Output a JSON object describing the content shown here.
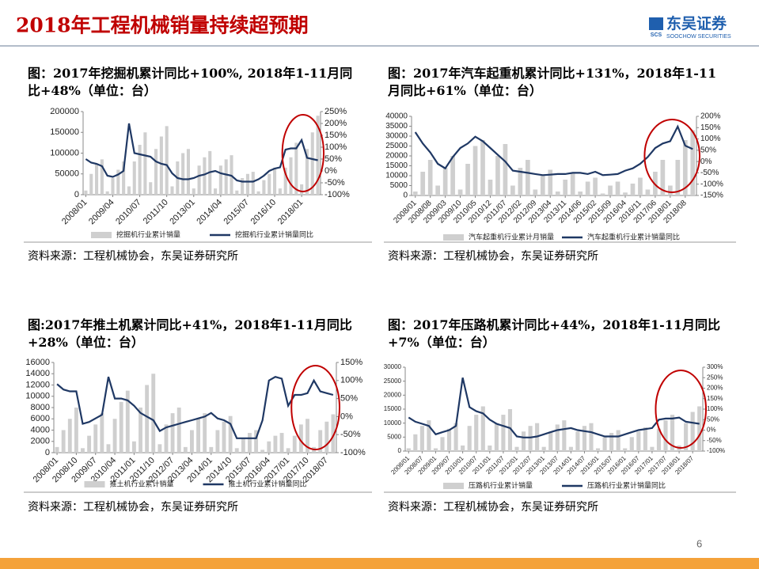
{
  "header": {
    "title": "2018年工程机械销量持续超预期",
    "logo": "东吴证券",
    "logo_mark": "SCS",
    "logo_sub": "SOOCHOW SECURITIES"
  },
  "page_number": "6",
  "chart_data": [
    {
      "type": "bar_line",
      "title": "图：2017年挖掘机累计同比+100%, 2018年1-11月同比+48%（单位：台）",
      "source": "资料来源：工程机械协会，东吴证券研究所",
      "categories": [
        "2008/01",
        null,
        null,
        null,
        null,
        "2009/04",
        null,
        null,
        null,
        null,
        "2010/07",
        null,
        null,
        null,
        null,
        "2011/10",
        null,
        null,
        null,
        null,
        "2013/01",
        null,
        null,
        null,
        null,
        "2014/04",
        null,
        null,
        null,
        null,
        "2015/07",
        null,
        null,
        null,
        null,
        "2016/10",
        null,
        null,
        null,
        null,
        "2018/01",
        null,
        null,
        null
      ],
      "series": [
        {
          "name": "挖掘机行业累计销量",
          "type": "bar",
          "color": "#cfcfcf",
          "values": [
            10000,
            50000,
            75000,
            85000,
            8000,
            40000,
            60000,
            80000,
            20000,
            80000,
            120000,
            150000,
            30000,
            110000,
            140000,
            165000,
            20000,
            80000,
            100000,
            110000,
            15000,
            70000,
            90000,
            105000,
            15000,
            70000,
            85000,
            95000,
            10000,
            40000,
            50000,
            55000,
            8000,
            35000,
            50000,
            65000,
            15000,
            65000,
            90000,
            125000,
            25000,
            110000,
            150000,
            190000
          ]
        },
        {
          "name": "挖掘机行业累计销量同比",
          "type": "line",
          "axis": "y2",
          "color": "#1f3864",
          "values": [
            50,
            35,
            30,
            20,
            -20,
            -25,
            -15,
            0,
            200,
            75,
            70,
            65,
            60,
            40,
            30,
            25,
            -10,
            -30,
            -35,
            -35,
            -30,
            -20,
            -15,
            -5,
            0,
            -10,
            -15,
            -20,
            -40,
            -45,
            -45,
            -45,
            -35,
            -20,
            0,
            10,
            15,
            90,
            95,
            95,
            130,
            55,
            50,
            45
          ]
        }
      ],
      "ylim": [
        0,
        200000
      ],
      "yticks": [
        0,
        50000,
        100000,
        150000,
        200000
      ],
      "y2lim": [
        -100,
        250
      ],
      "y2ticks": [
        {
          "value": -100,
          "label": "-100%"
        },
        {
          "value": -50,
          "label": "-50%"
        },
        {
          "value": 0,
          "label": "0%"
        },
        {
          "value": 50,
          "label": "50%"
        },
        {
          "value": 100,
          "label": "100%"
        },
        {
          "value": 150,
          "label": "150%"
        },
        {
          "value": 200,
          "label": "200%"
        },
        {
          "value": 250,
          "label": "250%"
        }
      ]
    },
    {
      "type": "bar_line",
      "title": "图：2017年汽车起重机累计同比+131%，2018年1-11月同比+61%（单位：台）",
      "source": "资料来源：工程机械协会，东吴证券研究所",
      "categories": [
        "2008/01",
        null,
        "2008/08",
        null,
        "2009/03",
        null,
        "2009/10",
        null,
        "2010/05",
        null,
        "2010/12",
        null,
        "2011/07",
        null,
        "2012/02",
        null,
        "2012/09",
        null,
        "2013/04",
        null,
        "2013/11",
        null,
        "2014/06",
        null,
        "2015/02",
        null,
        "2015/09",
        null,
        "2016/04",
        null,
        "2016/11",
        null,
        "2017/06",
        null,
        "2018/01",
        null,
        "2018/08",
        null
      ],
      "series": [
        {
          "name": "汽车起重机行业累计月销量",
          "type": "bar",
          "color": "#cfcfcf",
          "values": [
            2000,
            12000,
            18000,
            5000,
            14000,
            20000,
            3000,
            16000,
            25000,
            28000,
            8000,
            20000,
            26000,
            5000,
            14000,
            18000,
            3000,
            10000,
            13000,
            2000,
            8000,
            11000,
            2000,
            7000,
            9000,
            1000,
            5000,
            7000,
            1500,
            6000,
            9000,
            3000,
            12000,
            18000,
            5000,
            18000,
            28000,
            33000
          ]
        },
        {
          "name": "汽车起重机行业累计销量同比",
          "type": "line",
          "axis": "y2",
          "color": "#1f3864",
          "values": [
            130,
            80,
            40,
            -10,
            -30,
            20,
            60,
            80,
            110,
            90,
            60,
            30,
            0,
            -40,
            -45,
            -50,
            -55,
            -60,
            -58,
            -55,
            -55,
            -50,
            -50,
            -55,
            -45,
            -60,
            -58,
            -55,
            -40,
            -30,
            -10,
            20,
            60,
            80,
            90,
            155,
            70,
            55
          ]
        }
      ],
      "ylim": [
        0,
        40000
      ],
      "yticks": [
        0,
        5000,
        10000,
        15000,
        20000,
        25000,
        30000,
        35000,
        40000
      ],
      "y2lim": [
        -150,
        200
      ],
      "y2ticks": [
        {
          "value": -150,
          "label": "-150%"
        },
        {
          "value": -100,
          "label": "-100%"
        },
        {
          "value": -50,
          "label": "-50%"
        },
        {
          "value": 0,
          "label": "0%"
        },
        {
          "value": 50,
          "label": "50%"
        },
        {
          "value": 100,
          "label": "100%"
        },
        {
          "value": 150,
          "label": "150%"
        },
        {
          "value": 200,
          "label": "200%"
        }
      ]
    },
    {
      "type": "bar_line",
      "title": "图:2017年推土机累计同比+41%，2018年1-11月同比+28%（单位：台）",
      "source": "资料来源：工程机械协会，东吴证券研究所",
      "categories": [
        "2008/01",
        null,
        null,
        "2008/10",
        null,
        null,
        "2009/07",
        null,
        null,
        "2010/04",
        null,
        null,
        "2011/01",
        null,
        null,
        "2011/10",
        null,
        null,
        "2012/07",
        null,
        null,
        "2013/04",
        null,
        null,
        "2014/01",
        null,
        null,
        "2014/10",
        null,
        null,
        "2015/07",
        null,
        null,
        "2016/04",
        null,
        null,
        "2017/01",
        null,
        null,
        "2017/10",
        null,
        null,
        "2018/07",
        null
      ],
      "series": [
        {
          "name": "推土机行业累计销量",
          "type": "bar",
          "color": "#cfcfcf",
          "values": [
            1000,
            4000,
            6000,
            8000,
            800,
            3000,
            5000,
            7000,
            1500,
            6000,
            9000,
            11000,
            2000,
            8000,
            12000,
            14000,
            1500,
            5000,
            7000,
            8000,
            1000,
            4000,
            6000,
            7000,
            1000,
            4000,
            5500,
            6500,
            800,
            2500,
            3500,
            4000,
            500,
            2000,
            3000,
            3500,
            800,
            3000,
            5000,
            6000,
            1000,
            4000,
            5500,
            6800
          ]
        },
        {
          "name": "推土机行业累计销量同比",
          "type": "line",
          "axis": "y2",
          "color": "#1f3864",
          "values": [
            90,
            75,
            70,
            70,
            -20,
            -15,
            -5,
            5,
            110,
            50,
            50,
            45,
            30,
            10,
            0,
            -10,
            -40,
            -30,
            -25,
            -20,
            -15,
            -10,
            -5,
            0,
            10,
            -5,
            -10,
            -20,
            -60,
            -60,
            -60,
            -60,
            -10,
            100,
            110,
            105,
            30,
            60,
            60,
            65,
            100,
            70,
            65,
            60
          ]
        }
      ],
      "ylim": [
        0,
        16000
      ],
      "yticks": [
        0,
        2000,
        4000,
        6000,
        8000,
        10000,
        12000,
        14000,
        16000
      ],
      "y2lim": [
        -100,
        150
      ],
      "y2ticks": [
        {
          "value": -100,
          "label": "-100%"
        },
        {
          "value": -50,
          "label": "-50%"
        },
        {
          "value": 0,
          "label": "0%"
        },
        {
          "value": 50,
          "label": "50%"
        },
        {
          "value": 100,
          "label": "100%"
        },
        {
          "value": 150,
          "label": "150%"
        }
      ]
    },
    {
      "type": "bar_line",
      "title": "图：2017年压路机累计同比+44%，2018年1-11月同比+7%（单位：台）",
      "source": "资料来源：工程机械协会，东吴证券研究所",
      "categories": [
        "2008/01",
        null,
        "2008/07",
        null,
        "2009/01",
        null,
        "2009/07",
        null,
        "2010/01",
        null,
        "2010/07",
        null,
        "2011/01",
        null,
        "2011/07",
        null,
        "2012/01",
        null,
        "2012/07",
        null,
        "2013/01",
        null,
        "2013/07",
        null,
        "2014/01",
        null,
        "2014/07",
        null,
        "2015/01",
        null,
        "2015/07",
        null,
        "2016/01",
        null,
        "2016/07",
        null,
        "2017/01",
        null,
        "2017/07",
        null,
        "2018/01",
        null,
        "2018/07",
        null
      ],
      "series": [
        {
          "name": "压路机行业累计销量",
          "type": "bar",
          "color": "#cfcfcf",
          "values": [
            1000,
            6000,
            9000,
            11000,
            1000,
            5000,
            8000,
            10000,
            2000,
            9000,
            13000,
            16000,
            2000,
            10000,
            13000,
            15000,
            1500,
            7000,
            9000,
            10000,
            1500,
            7000,
            9500,
            11000,
            1500,
            7000,
            9000,
            10000,
            1000,
            5000,
            6500,
            7500,
            1000,
            5000,
            7000,
            8500,
            1500,
            8000,
            11000,
            13000,
            2000,
            10000,
            14000,
            16000
          ]
        },
        {
          "name": "压路机行业累计销量同比",
          "type": "line",
          "axis": "y2",
          "color": "#1f3864",
          "values": [
            60,
            40,
            30,
            20,
            -20,
            -10,
            0,
            20,
            250,
            110,
            90,
            80,
            50,
            30,
            20,
            10,
            -30,
            -35,
            -35,
            -30,
            -20,
            -10,
            0,
            5,
            10,
            0,
            -5,
            -10,
            -20,
            -30,
            -30,
            -30,
            -20,
            -10,
            0,
            5,
            10,
            50,
            55,
            55,
            60,
            40,
            35,
            30
          ]
        }
      ],
      "ylim": [
        0,
        30000
      ],
      "yticks": [
        0,
        5000,
        10000,
        15000,
        20000,
        25000,
        30000
      ],
      "y2lim": [
        -100,
        300
      ],
      "y2ticks": [
        {
          "value": -100,
          "label": "-100%"
        },
        {
          "value": -50,
          "label": "-50%"
        },
        {
          "value": 0,
          "label": "0%"
        },
        {
          "value": 50,
          "label": "50%"
        },
        {
          "value": 100,
          "label": "100%"
        },
        {
          "value": 150,
          "label": "150%"
        },
        {
          "value": 200,
          "label": "200%"
        },
        {
          "value": 250,
          "label": "250%"
        },
        {
          "value": 300,
          "label": "300%"
        }
      ]
    }
  ]
}
